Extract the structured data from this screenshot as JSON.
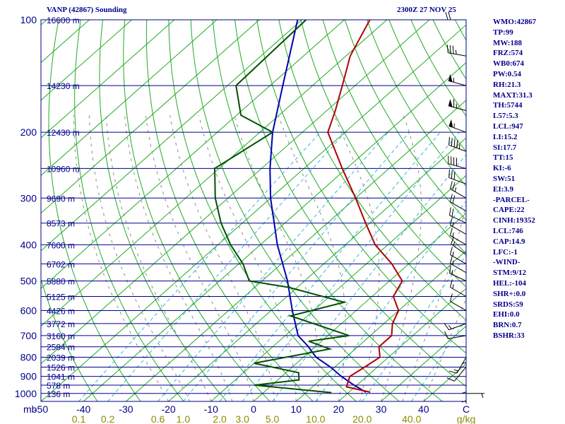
{
  "header": {
    "title": "VANP (42867) Sounding",
    "timestamp": "2300Z 27 NOV 25"
  },
  "indices": [
    "WMO:42867",
    "TP:99",
    "MW:188",
    "FRZ:574",
    "WB0:674",
    "PW:0.54",
    "RH:21.3",
    "MAXT:31.3",
    "TH:5744",
    "L57:5.3",
    "LCL:947",
    "LI:15.2",
    "SI:17.7",
    "TT:15",
    "KI:-6",
    "SW:51",
    "EI:3.9",
    "-PARCEL-",
    "CAPE:22",
    "CINH:19352",
    "LCL:746",
    "CAP:14.9",
    "LFC:-1",
    "-WIND-",
    "STM:9/12",
    "HEL:-104",
    "SHR+:0.0",
    "SRDS:59",
    "EHI:0.0",
    "BRN:0.7",
    "BSHR:33"
  ],
  "colors": {
    "isobar": "#00008b",
    "isotherm": "#22aa22",
    "dry_adiabat": "#22aa22",
    "moist_adiabat": "#8c8c8c",
    "mixing_ratio": "#3ab4d6",
    "temperature": "#b00000",
    "dewpoint": "#005000",
    "parcel": "#0000b0",
    "frame": "#00008b",
    "mixing_label": "#8b8b00"
  },
  "chart_data": {
    "type": "skew-t",
    "title": "VANP (42867) Sounding",
    "xlabel": "mb",
    "x_unit_label": "C",
    "mixing_ratio_unit": "g/kg",
    "temperature_range_c": [
      -50,
      50
    ],
    "pressure_range_mb": [
      100,
      1050
    ],
    "pressure_ticks": [
      100,
      200,
      300,
      400,
      500,
      600,
      700,
      800,
      900,
      1000
    ],
    "temperature_ticks": [
      -50,
      -40,
      -30,
      -20,
      -10,
      0,
      10,
      20,
      30,
      40
    ],
    "mixing_ratio_labels": [
      {
        "text": "0.1",
        "value": 0.1
      },
      {
        "text": "0.2",
        "value": 0.2
      },
      {
        "text": "0.6",
        "value": 0.6
      },
      {
        "text": "1.0",
        "value": 1.0
      },
      {
        "text": "2.0",
        "value": 2.0
      },
      {
        "text": "3.0",
        "value": 3.0
      },
      {
        "text": "5.0",
        "value": 5.0
      },
      {
        "text": "10.0",
        "value": 10.0
      },
      {
        "text": "20.0",
        "value": 20.0
      },
      {
        "text": "40.0",
        "value": 40.0
      }
    ],
    "heights": [
      {
        "pressure": 100,
        "height": "16600 m"
      },
      {
        "pressure": 150,
        "height": "14230 m"
      },
      {
        "pressure": 200,
        "height": "12430 m"
      },
      {
        "pressure": 250,
        "height": "10960 m"
      },
      {
        "pressure": 300,
        "height": "9690 m"
      },
      {
        "pressure": 350,
        "height": "8573 m"
      },
      {
        "pressure": 400,
        "height": "7600 m"
      },
      {
        "pressure": 450,
        "height": "6702 m"
      },
      {
        "pressure": 500,
        "height": "5880 m"
      },
      {
        "pressure": 550,
        "height": "5125 m"
      },
      {
        "pressure": 600,
        "height": "4426 m"
      },
      {
        "pressure": 650,
        "height": "3772 m"
      },
      {
        "pressure": 700,
        "height": "3160 m"
      },
      {
        "pressure": 750,
        "height": "2584 m"
      },
      {
        "pressure": 800,
        "height": "2039 m"
      },
      {
        "pressure": 850,
        "height": "1526 m"
      },
      {
        "pressure": 900,
        "height": "1041 m"
      },
      {
        "pressure": 950,
        "height": "578 m"
      },
      {
        "pressure": 1000,
        "height": "136 m"
      }
    ],
    "temperature_profile": [
      {
        "p": 100,
        "t": -74
      },
      {
        "p": 125,
        "t": -69
      },
      {
        "p": 150,
        "t": -63
      },
      {
        "p": 175,
        "t": -58
      },
      {
        "p": 200,
        "t": -54
      },
      {
        "p": 250,
        "t": -41
      },
      {
        "p": 300,
        "t": -30
      },
      {
        "p": 350,
        "t": -21
      },
      {
        "p": 400,
        "t": -13
      },
      {
        "p": 450,
        "t": -4
      },
      {
        "p": 500,
        "t": 3
      },
      {
        "p": 550,
        "t": 5
      },
      {
        "p": 600,
        "t": 10
      },
      {
        "p": 650,
        "t": 12
      },
      {
        "p": 700,
        "t": 15
      },
      {
        "p": 750,
        "t": 15
      },
      {
        "p": 800,
        "t": 18
      },
      {
        "p": 850,
        "t": 17
      },
      {
        "p": 900,
        "t": 16
      },
      {
        "p": 960,
        "t": 18
      },
      {
        "p": 992,
        "t": 25
      }
    ],
    "dewpoint_profile": [
      {
        "p": 100,
        "t": -89
      },
      {
        "p": 150,
        "t": -88
      },
      {
        "p": 180,
        "t": -79
      },
      {
        "p": 200,
        "t": -67
      },
      {
        "p": 250,
        "t": -71
      },
      {
        "p": 300,
        "t": -63
      },
      {
        "p": 350,
        "t": -55
      },
      {
        "p": 400,
        "t": -47
      },
      {
        "p": 450,
        "t": -39
      },
      {
        "p": 500,
        "t": -33
      },
      {
        "p": 520,
        "t": -22
      },
      {
        "p": 570,
        "t": -5
      },
      {
        "p": 620,
        "t": -14
      },
      {
        "p": 700,
        "t": 5
      },
      {
        "p": 725,
        "t": -3
      },
      {
        "p": 760,
        "t": 4
      },
      {
        "p": 830,
        "t": -10
      },
      {
        "p": 880,
        "t": 3
      },
      {
        "p": 920,
        "t": 5
      },
      {
        "p": 950,
        "t": -4
      },
      {
        "p": 995,
        "t": 16
      }
    ],
    "parcel_path": [
      {
        "p": 992,
        "t": 24
      },
      {
        "p": 947,
        "t": 19
      },
      {
        "p": 900,
        "t": 14
      },
      {
        "p": 850,
        "t": 9
      },
      {
        "p": 800,
        "t": 3
      },
      {
        "p": 746,
        "t": -2
      },
      {
        "p": 700,
        "t": -7
      },
      {
        "p": 600,
        "t": -15
      },
      {
        "p": 500,
        "t": -24
      },
      {
        "p": 400,
        "t": -36
      },
      {
        "p": 300,
        "t": -50
      },
      {
        "p": 250,
        "t": -58
      },
      {
        "p": 200,
        "t": -67
      },
      {
        "p": 150,
        "t": -77
      },
      {
        "p": 100,
        "t": -91
      }
    ],
    "wind_barbs": [
      {
        "p": 100,
        "dir": 270,
        "kt": 20
      },
      {
        "p": 125,
        "dir": 280,
        "kt": 35
      },
      {
        "p": 150,
        "dir": 285,
        "kt": 55
      },
      {
        "p": 175,
        "dir": 285,
        "kt": 65
      },
      {
        "p": 200,
        "dir": 290,
        "kt": 55
      },
      {
        "p": 225,
        "dir": 290,
        "kt": 45
      },
      {
        "p": 250,
        "dir": 285,
        "kt": 40
      },
      {
        "p": 275,
        "dir": 290,
        "kt": 30
      },
      {
        "p": 300,
        "dir": 300,
        "kt": 25
      },
      {
        "p": 325,
        "dir": 300,
        "kt": 20
      },
      {
        "p": 350,
        "dir": 295,
        "kt": 20
      },
      {
        "p": 375,
        "dir": 300,
        "kt": 15
      },
      {
        "p": 400,
        "dir": 300,
        "kt": 15
      },
      {
        "p": 425,
        "dir": 305,
        "kt": 15
      },
      {
        "p": 450,
        "dir": 300,
        "kt": 15
      },
      {
        "p": 475,
        "dir": 300,
        "kt": 15
      },
      {
        "p": 500,
        "dir": 295,
        "kt": 15
      },
      {
        "p": 550,
        "dir": 300,
        "kt": 15
      },
      {
        "p": 600,
        "dir": 300,
        "kt": 10
      },
      {
        "p": 650,
        "dir": 250,
        "kt": 15
      },
      {
        "p": 700,
        "dir": 260,
        "kt": 10
      },
      {
        "p": 750,
        "dir": 180,
        "kt": 5
      },
      {
        "p": 800,
        "dir": 210,
        "kt": 15
      },
      {
        "p": 850,
        "dir": 220,
        "kt": 10
      },
      {
        "p": 900,
        "dir": 180,
        "kt": 5
      },
      {
        "p": 950,
        "dir": 180,
        "kt": 5
      },
      {
        "p": 1000,
        "dir": 90,
        "kt": 5
      }
    ]
  }
}
